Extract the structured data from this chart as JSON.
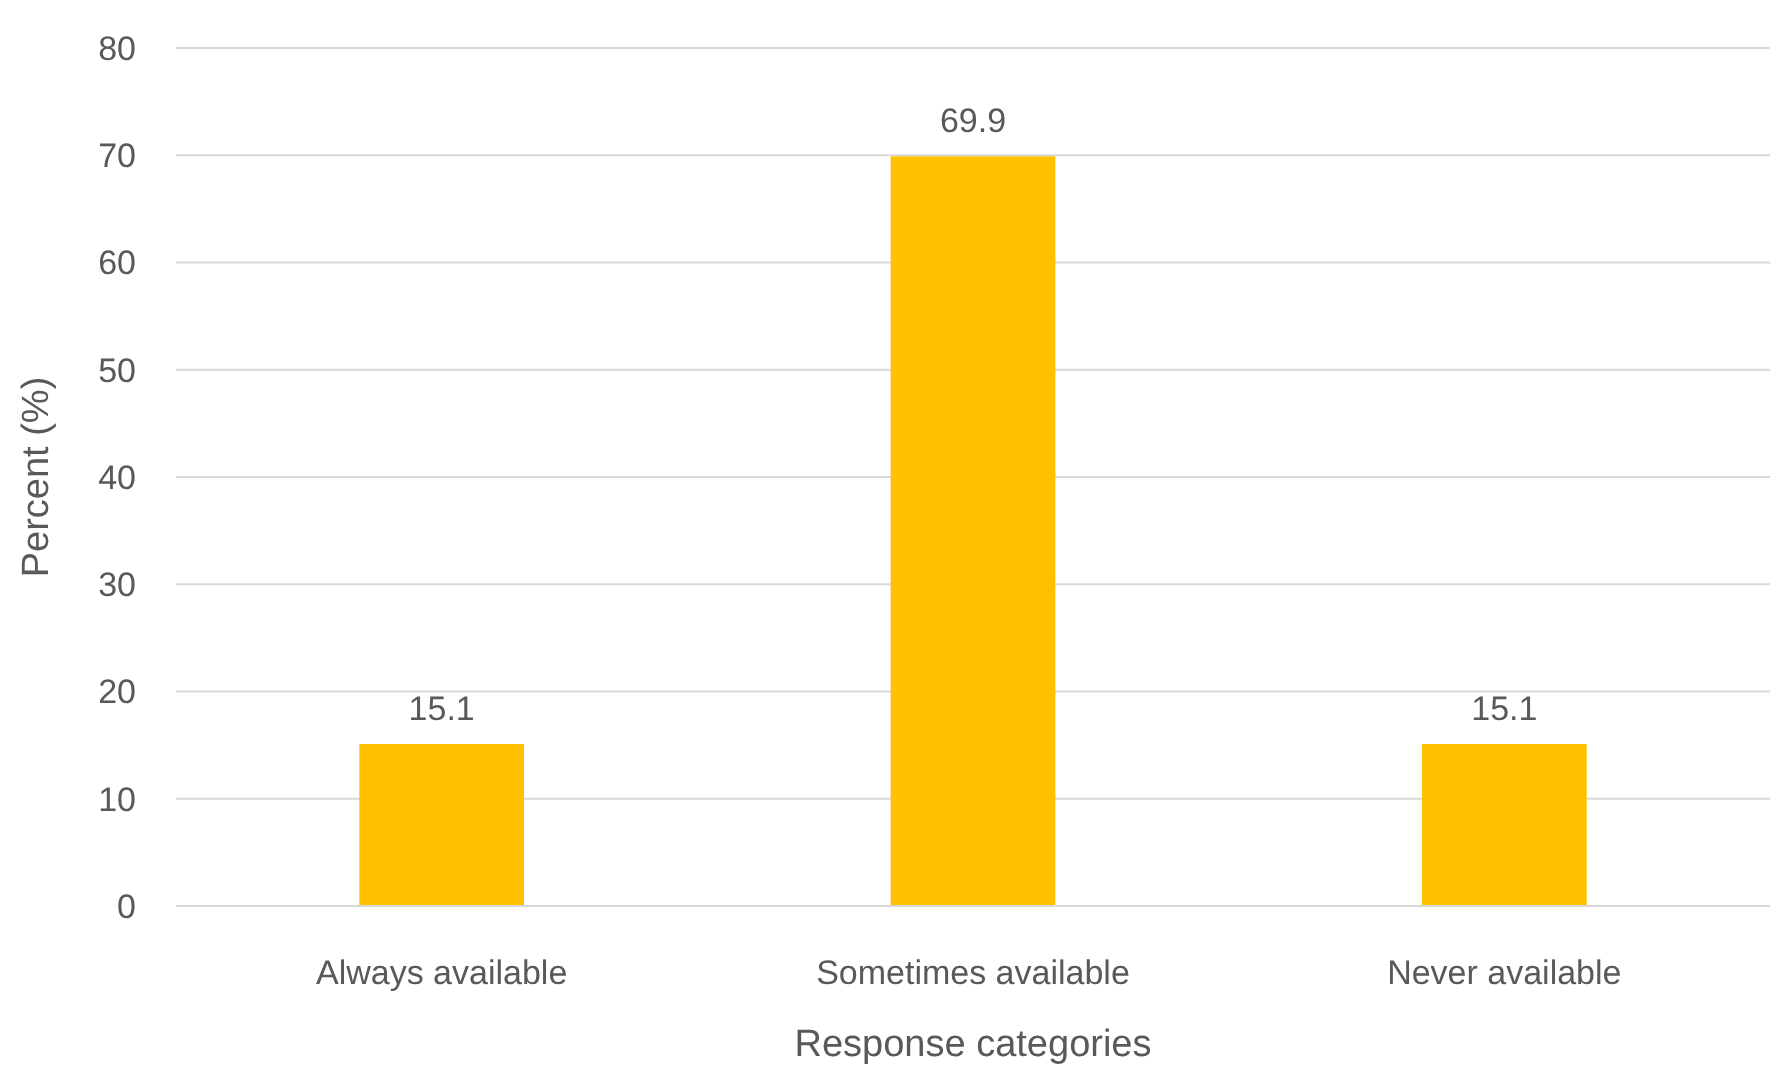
{
  "chart_data": {
    "type": "bar",
    "xlabel": "Response categories",
    "ylabel": "Percent (%)",
    "categories": [
      "Always available",
      "Sometimes available",
      "Never available"
    ],
    "values": [
      15.1,
      69.9,
      15.1
    ],
    "color": "#ffc000",
    "ylim": [
      0,
      80
    ],
    "yticks": [
      0,
      10,
      20,
      30,
      40,
      50,
      60,
      70,
      80
    ],
    "grid": "y",
    "data_labels": true
  }
}
